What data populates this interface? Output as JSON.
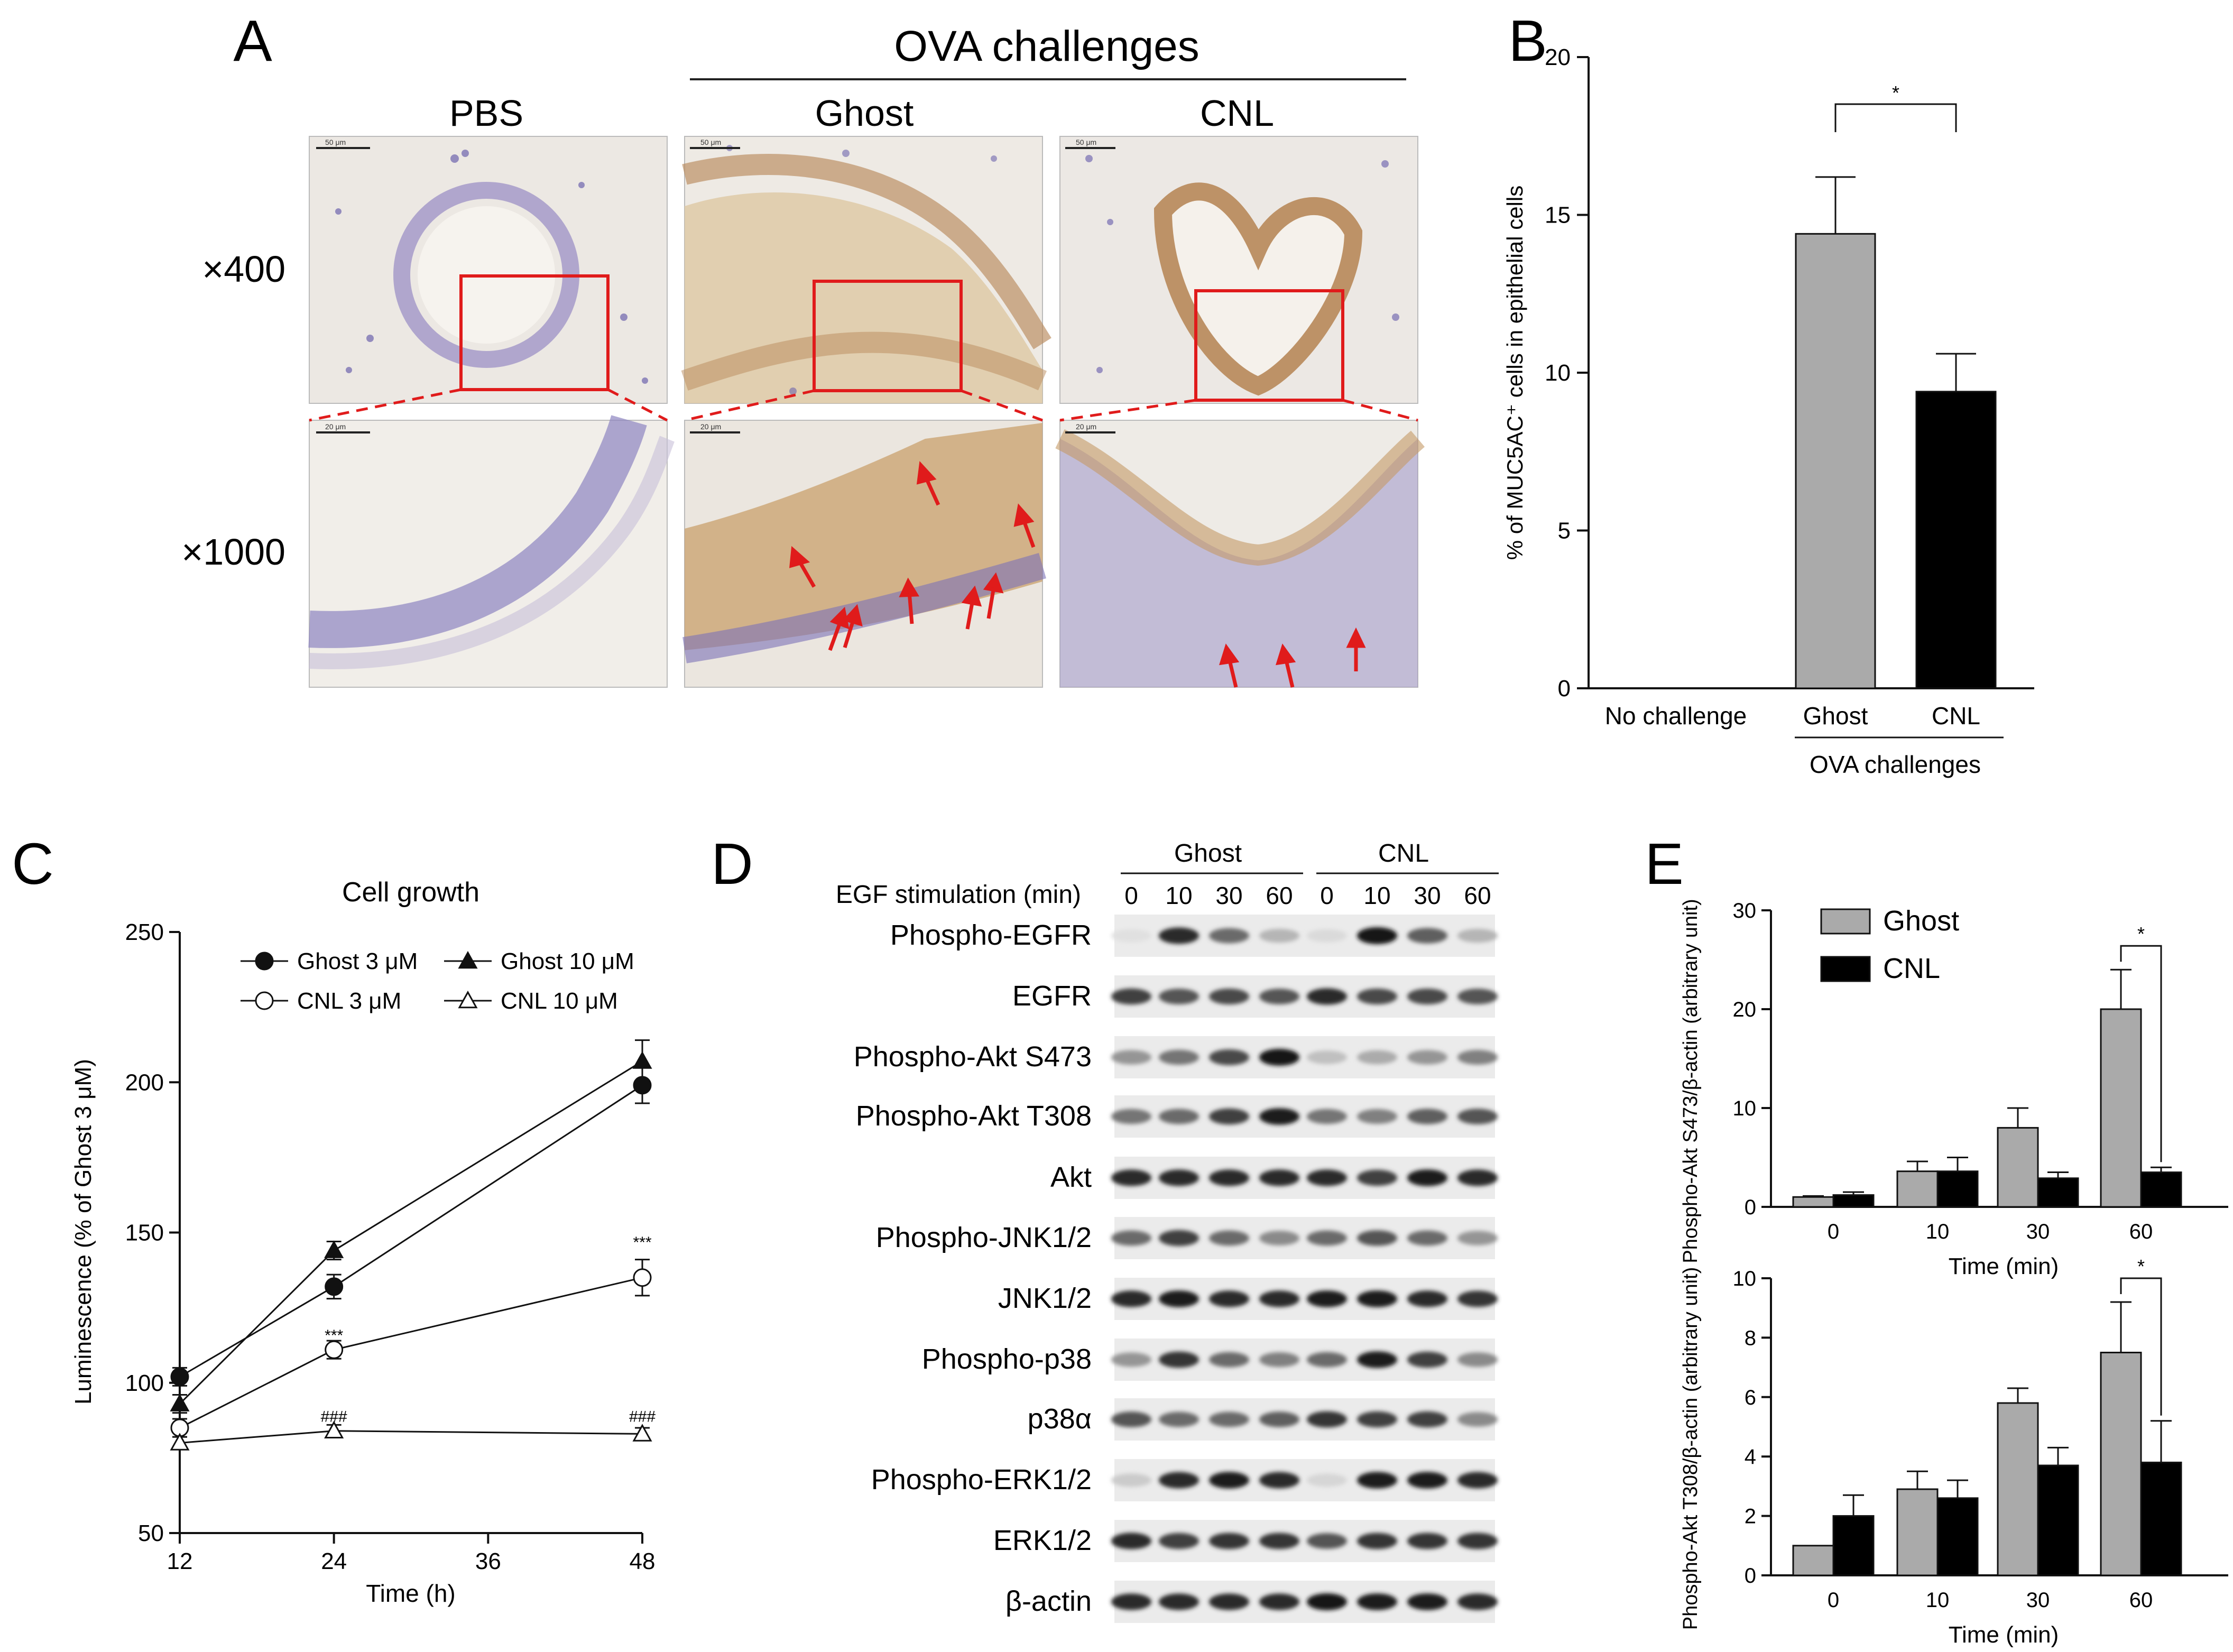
{
  "panels": {
    "A": {
      "letter": "A",
      "group_label": "OVA challenges",
      "columns": [
        "PBS",
        "Ghost",
        "CNL"
      ],
      "rows": [
        "×400",
        "×1000"
      ],
      "scale_labels": [
        "50 μm",
        "20 μm"
      ]
    },
    "B": {
      "letter": "B"
    },
    "C": {
      "letter": "C"
    },
    "D": {
      "letter": "D",
      "groups": [
        "Ghost",
        "CNL"
      ],
      "stim_label": "EGF stimulation (min)",
      "timepoints": [
        "0",
        "10",
        "30",
        "60",
        "0",
        "10",
        "30",
        "60"
      ],
      "blots": [
        {
          "label": "Phospho-EGFR",
          "intensity": [
            0.05,
            0.9,
            0.6,
            0.25,
            0.08,
            1.0,
            0.65,
            0.25
          ]
        },
        {
          "label": "EGFR",
          "intensity": [
            0.8,
            0.7,
            0.75,
            0.7,
            0.9,
            0.75,
            0.75,
            0.7
          ]
        },
        {
          "label": "Phospho-Akt S473",
          "intensity": [
            0.4,
            0.55,
            0.75,
            1.0,
            0.2,
            0.3,
            0.4,
            0.5
          ]
        },
        {
          "label": "Phospho-Akt T308",
          "intensity": [
            0.55,
            0.6,
            0.8,
            0.95,
            0.55,
            0.5,
            0.65,
            0.7
          ]
        },
        {
          "label": "Akt",
          "intensity": [
            0.9,
            0.9,
            0.9,
            0.9,
            0.9,
            0.8,
            0.95,
            0.9
          ]
        },
        {
          "label": "Phospho-JNK1/2",
          "intensity": [
            0.6,
            0.8,
            0.6,
            0.45,
            0.6,
            0.7,
            0.6,
            0.4
          ]
        },
        {
          "label": "JNK1/2",
          "intensity": [
            0.9,
            0.95,
            0.9,
            0.9,
            0.95,
            0.95,
            0.9,
            0.85
          ]
        },
        {
          "label": "Phospho-p38",
          "intensity": [
            0.4,
            0.85,
            0.6,
            0.5,
            0.6,
            0.95,
            0.8,
            0.45
          ]
        },
        {
          "label": "p38α",
          "intensity": [
            0.7,
            0.6,
            0.6,
            0.65,
            0.85,
            0.8,
            0.8,
            0.45
          ]
        },
        {
          "label": "Phospho-ERK1/2",
          "intensity": [
            0.15,
            0.9,
            0.95,
            0.9,
            0.1,
            0.95,
            0.95,
            0.9
          ]
        },
        {
          "label": "ERK1/2",
          "intensity": [
            0.9,
            0.8,
            0.85,
            0.85,
            0.7,
            0.85,
            0.85,
            0.85
          ]
        },
        {
          "label": "β-actin",
          "intensity": [
            0.9,
            0.9,
            0.9,
            0.9,
            1.0,
            0.95,
            0.95,
            0.9
          ]
        }
      ]
    },
    "E": {
      "letter": "E"
    }
  },
  "chart_data": [
    {
      "id": "B",
      "type": "bar",
      "categories": [
        "No challenge",
        "Ghost",
        "CNL"
      ],
      "group_label": "OVA challenges",
      "values": [
        0,
        14.4,
        9.4
      ],
      "errors": [
        0,
        1.8,
        1.2
      ],
      "colors": [
        "#aaaaaa",
        "#aaaaaa",
        "#000000"
      ],
      "ylabel": "% of MUC5AC⁺ cells in epithelial cells",
      "ylim": [
        0,
        20
      ],
      "yticks": [
        0,
        5,
        10,
        15,
        20
      ],
      "significance": "*"
    },
    {
      "id": "C",
      "type": "line",
      "title": "Cell growth",
      "xlabel": "Time (h)",
      "ylabel": "Luminescence (% of Ghost 3 μM)",
      "xlim": [
        12,
        48
      ],
      "xticks": [
        12,
        24,
        36,
        48
      ],
      "ylim": [
        50,
        250
      ],
      "yticks": [
        50,
        100,
        150,
        200,
        250
      ],
      "legend_position": "top",
      "series": [
        {
          "name": "Ghost 3 μM",
          "marker": "filled-circle",
          "x": [
            12,
            24,
            48
          ],
          "y": [
            102,
            132,
            199
          ],
          "err": [
            3,
            4,
            6
          ]
        },
        {
          "name": "Ghost 10 μM",
          "marker": "filled-triangle",
          "x": [
            12,
            24,
            48
          ],
          "y": [
            93,
            144,
            207
          ],
          "err": [
            3,
            3,
            7
          ]
        },
        {
          "name": "CNL 3 μM",
          "marker": "open-circle",
          "x": [
            12,
            24,
            48
          ],
          "y": [
            85,
            111,
            135
          ],
          "err": [
            3,
            3,
            6
          ]
        },
        {
          "name": "CNL 10 μM",
          "marker": "open-triangle",
          "x": [
            12,
            24,
            48
          ],
          "y": [
            80,
            84,
            83
          ],
          "err": [
            2,
            2,
            2
          ]
        }
      ],
      "annotations": [
        {
          "x": 24,
          "y": 114,
          "text": "***"
        },
        {
          "x": 48,
          "y": 145,
          "text": "***"
        },
        {
          "x": 24,
          "y": 87,
          "text": "###"
        },
        {
          "x": 48,
          "y": 87,
          "text": "###"
        }
      ]
    },
    {
      "id": "E-top",
      "type": "bar",
      "xlabel": "Time (min)",
      "ylabel": "Phospho-Akt S473/β-actin (arbitrary unit)",
      "categories": [
        "0",
        "10",
        "30",
        "60"
      ],
      "ylim": [
        0,
        30
      ],
      "yticks": [
        0,
        10,
        20,
        30
      ],
      "legend_position": "top-left",
      "series": [
        {
          "name": "Ghost",
          "color": "#aaaaaa",
          "values": [
            1.0,
            3.6,
            8.0,
            20.0
          ],
          "errors": [
            0.1,
            1.0,
            2.0,
            4.0
          ]
        },
        {
          "name": "CNL",
          "color": "#000000",
          "values": [
            1.2,
            3.6,
            2.9,
            3.5
          ],
          "errors": [
            0.3,
            1.4,
            0.6,
            0.5
          ]
        }
      ],
      "significance": {
        "category": "60",
        "text": "*"
      }
    },
    {
      "id": "E-bottom",
      "type": "bar",
      "xlabel": "Time (min)",
      "ylabel": "Phospho-Akt T308/β-actin (arbitrary unit)",
      "categories": [
        "0",
        "10",
        "30",
        "60"
      ],
      "ylim": [
        0,
        10
      ],
      "yticks": [
        0,
        2,
        4,
        6,
        8,
        10
      ],
      "series": [
        {
          "name": "Ghost",
          "color": "#aaaaaa",
          "values": [
            1.0,
            2.9,
            5.8,
            7.5
          ],
          "errors": [
            0,
            0.6,
            0.5,
            1.7
          ]
        },
        {
          "name": "CNL",
          "color": "#000000",
          "values": [
            2.0,
            2.6,
            3.7,
            3.8
          ],
          "errors": [
            0.7,
            0.6,
            0.6,
            1.4
          ]
        }
      ],
      "significance": {
        "category": "60",
        "text": "*"
      }
    }
  ]
}
